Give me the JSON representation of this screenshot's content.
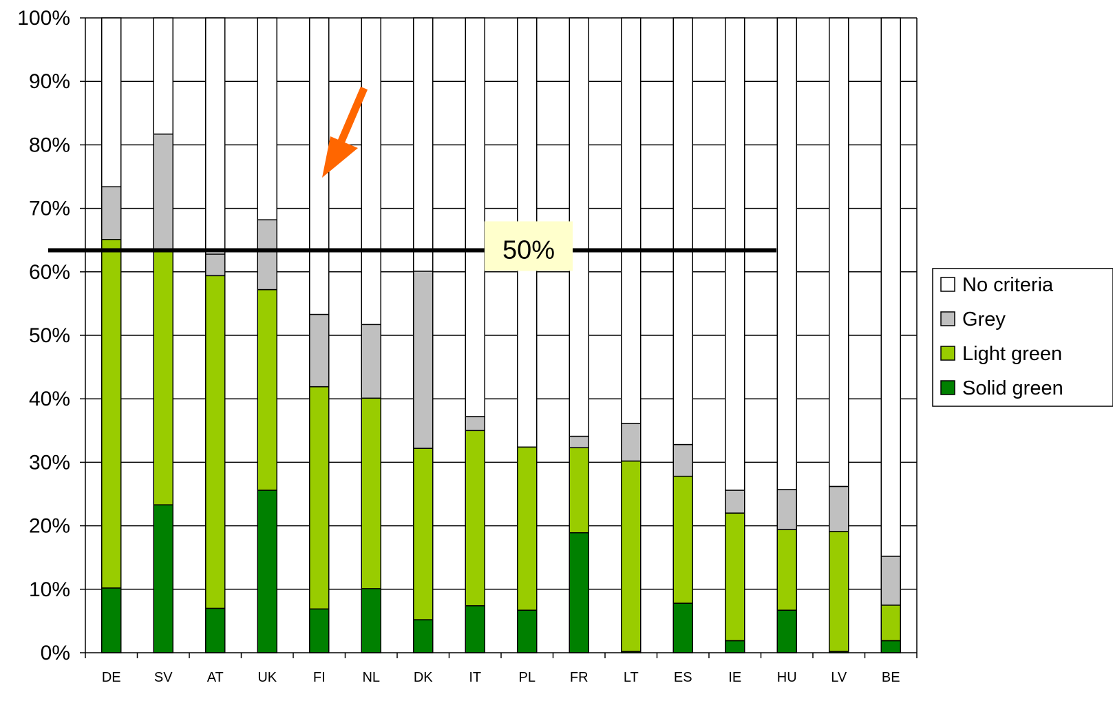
{
  "chart_data": {
    "type": "bar",
    "stacked": true,
    "percent_stacked": true,
    "categories": [
      "DE",
      "SV",
      "AT",
      "UK",
      "FI",
      "NL",
      "DK",
      "IT",
      "PL",
      "FR",
      "LT",
      "ES",
      "IE",
      "HU",
      "LV",
      "BE"
    ],
    "series": [
      {
        "name": "Solid green",
        "color": "#008000",
        "values": [
          10.2,
          23.3,
          7.0,
          25.6,
          6.9,
          10.1,
          5.2,
          7.4,
          6.7,
          18.9,
          0.2,
          7.8,
          1.9,
          6.7,
          0.2,
          1.9
        ]
      },
      {
        "name": "Light green",
        "color": "#99cc00",
        "values": [
          54.9,
          40.1,
          52.4,
          31.6,
          35.0,
          30.0,
          27.0,
          27.6,
          25.7,
          13.4,
          30.0,
          20.0,
          20.1,
          12.7,
          18.9,
          5.6
        ]
      },
      {
        "name": "Grey",
        "color": "#c0c0c0",
        "values": [
          8.3,
          18.3,
          3.4,
          11.0,
          11.4,
          11.6,
          27.9,
          2.2,
          0.0,
          1.8,
          5.9,
          5.0,
          3.6,
          6.3,
          7.1,
          7.7
        ]
      },
      {
        "name": "No criteria",
        "color": "#ffffff",
        "values": [
          26.6,
          18.3,
          37.2,
          31.8,
          46.7,
          48.3,
          39.9,
          62.8,
          67.6,
          65.9,
          63.9,
          67.2,
          74.4,
          74.3,
          73.8,
          84.8
        ]
      }
    ],
    "y_ticks": [
      "0%",
      "10%",
      "20%",
      "30%",
      "40%",
      "50%",
      "60%",
      "70%",
      "80%",
      "90%",
      "100%"
    ],
    "ylim": [
      0,
      100
    ],
    "grid": true,
    "legend_position": "right",
    "title": "",
    "xlabel": "",
    "ylabel": "",
    "reference_line": {
      "value": 63.4,
      "label": "50%"
    },
    "annotation_arrow": {
      "color": "#ff6600",
      "points_to": "FI"
    }
  }
}
